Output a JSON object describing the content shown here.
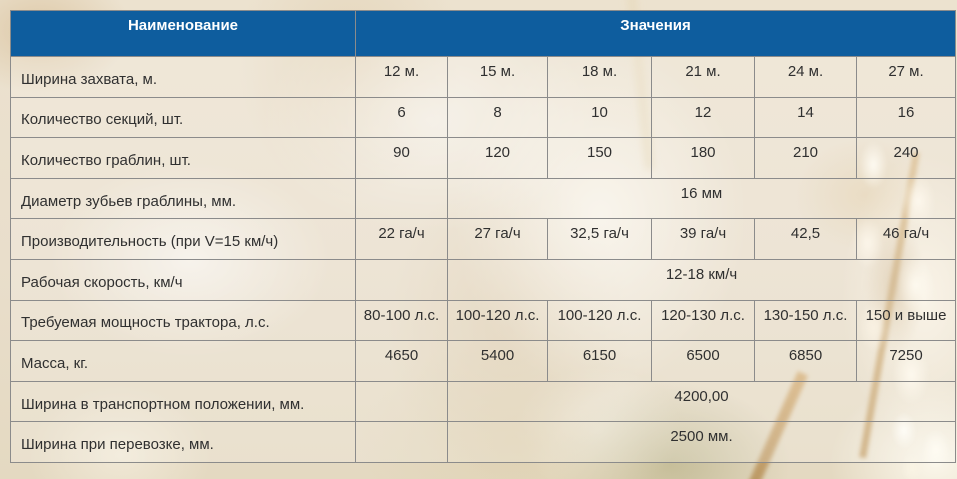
{
  "colors": {
    "header_bg": "#0e5d9e",
    "header_text": "#ffffff",
    "table_border": "#8b8b8b",
    "cell_text": "#303030"
  },
  "table": {
    "header": {
      "name": "Наименование",
      "values": "Значения"
    },
    "rows": [
      {
        "label": "Ширина захвата, м.",
        "values": [
          "12 м.",
          "15 м.",
          "18 м.",
          "21 м.",
          "24 м.",
          "27 м."
        ]
      },
      {
        "label": "Количество секций, шт.",
        "values": [
          "6",
          "8",
          "10",
          "12",
          "14",
          "16"
        ]
      },
      {
        "label": "Количество граблин, шт.",
        "values": [
          "90",
          "120",
          "150",
          "180",
          "210",
          "240"
        ]
      },
      {
        "label": "Диаметр зубьев граблины, мм.",
        "merged_value": "16 мм"
      },
      {
        "label": "Производительность (при V=15 км/ч)",
        "values": [
          "22 га/ч",
          "27 га/ч",
          "32,5 га/ч",
          "39 га/ч",
          "42,5",
          "46 га/ч"
        ]
      },
      {
        "label": "Рабочая скорость, км/ч",
        "merged_value": "12-18 км/ч"
      },
      {
        "label": "Требуемая мощность трактора, л.с.",
        "values": [
          "80-100 л.с.",
          "100-120 л.с.",
          "100-120 л.с.",
          "120-130 л.с.",
          "130-150 л.с.",
          "150 и выше"
        ]
      },
      {
        "label": "Масса, кг.",
        "values": [
          "4650",
          "5400",
          "6150",
          "6500",
          "6850",
          "7250"
        ]
      },
      {
        "label": "Ширина в транспортном положении, мм.",
        "merged_value": "4200,00"
      },
      {
        "label": "Ширина при перевозке, мм.",
        "merged_value": "2500 мм."
      }
    ]
  }
}
